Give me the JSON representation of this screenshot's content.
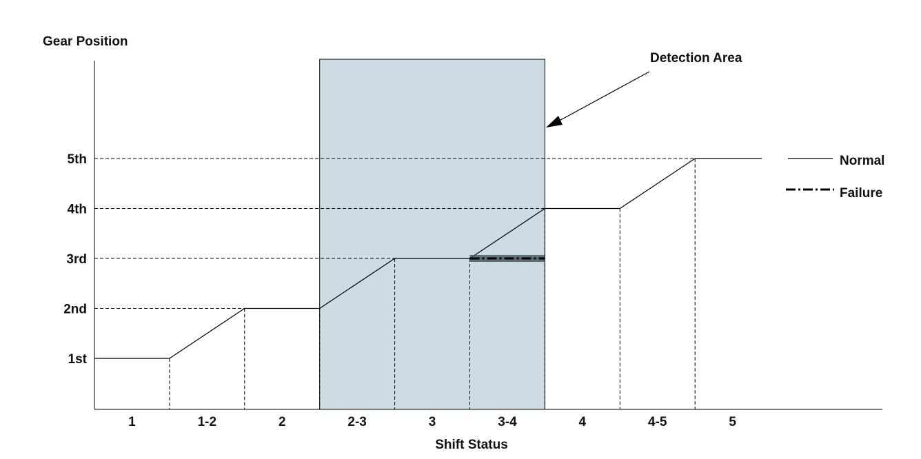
{
  "chart_data": {
    "type": "line",
    "ylabel": "Gear Position",
    "xlabel": "Shift Status",
    "y_ticks": [
      "1st",
      "2nd",
      "3rd",
      "4th",
      "5th"
    ],
    "categories": [
      "1",
      "1-2",
      "2",
      "2-3",
      "3",
      "3-4",
      "4",
      "4-5",
      "5"
    ],
    "series": [
      {
        "name": "Normal",
        "values": [
          1,
          "1→2",
          2,
          "2→3",
          3,
          "3→4",
          4,
          "4→5",
          5
        ]
      },
      {
        "name": "Failure",
        "values": [
          null,
          null,
          null,
          null,
          null,
          3,
          null,
          null,
          null
        ]
      }
    ],
    "highlight": {
      "label": "Detection Area",
      "from_category": "2-3",
      "to_category": "3-4",
      "color": "#cddbe3"
    },
    "failure_band_color": "#4a5a5f",
    "grid": "dashed reference lines",
    "legend_position": "right"
  }
}
